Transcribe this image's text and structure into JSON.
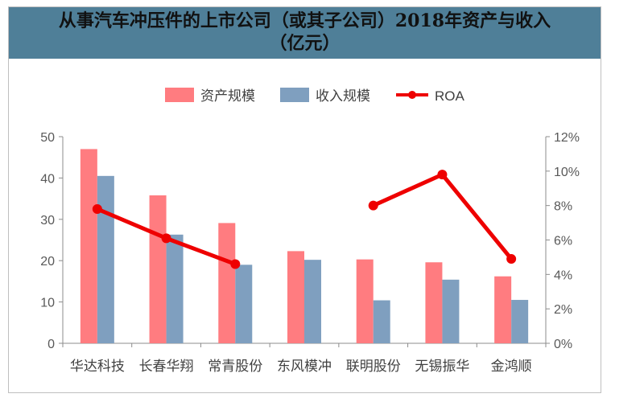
{
  "chart_data": {
    "type": "bar",
    "title": "从事汽车冲压件的上市公司（或其子公司）2018年资产与收入（亿元）",
    "categories": [
      "华达科技",
      "长春华翔",
      "常青股份",
      "东风模冲",
      "联明股份",
      "无锡振华",
      "金鸿顺"
    ],
    "series": [
      {
        "name": "资产规模",
        "type": "bar",
        "axis": "left",
        "color": "#ff7c80",
        "values": [
          47.0,
          35.8,
          29.1,
          22.3,
          20.3,
          19.6,
          16.2
        ]
      },
      {
        "name": "收入规模",
        "type": "bar",
        "axis": "left",
        "color": "#7f9fbf",
        "values": [
          40.5,
          26.3,
          19.0,
          20.2,
          10.4,
          15.4,
          10.5
        ]
      },
      {
        "name": "ROA",
        "type": "line",
        "axis": "right",
        "color": "#ee0000",
        "values": [
          0.078,
          0.061,
          0.046,
          null,
          0.08,
          0.098,
          0.049
        ]
      }
    ],
    "y_left": {
      "ylim": [
        0,
        50
      ],
      "ticks": [
        "0",
        "10",
        "20",
        "30",
        "40",
        "50"
      ]
    },
    "y_right": {
      "ylim": [
        0,
        0.12
      ],
      "ticks": [
        "0%",
        "2%",
        "4%",
        "6%",
        "8%",
        "10%",
        "12%"
      ]
    },
    "legend": {
      "position": "top"
    }
  }
}
